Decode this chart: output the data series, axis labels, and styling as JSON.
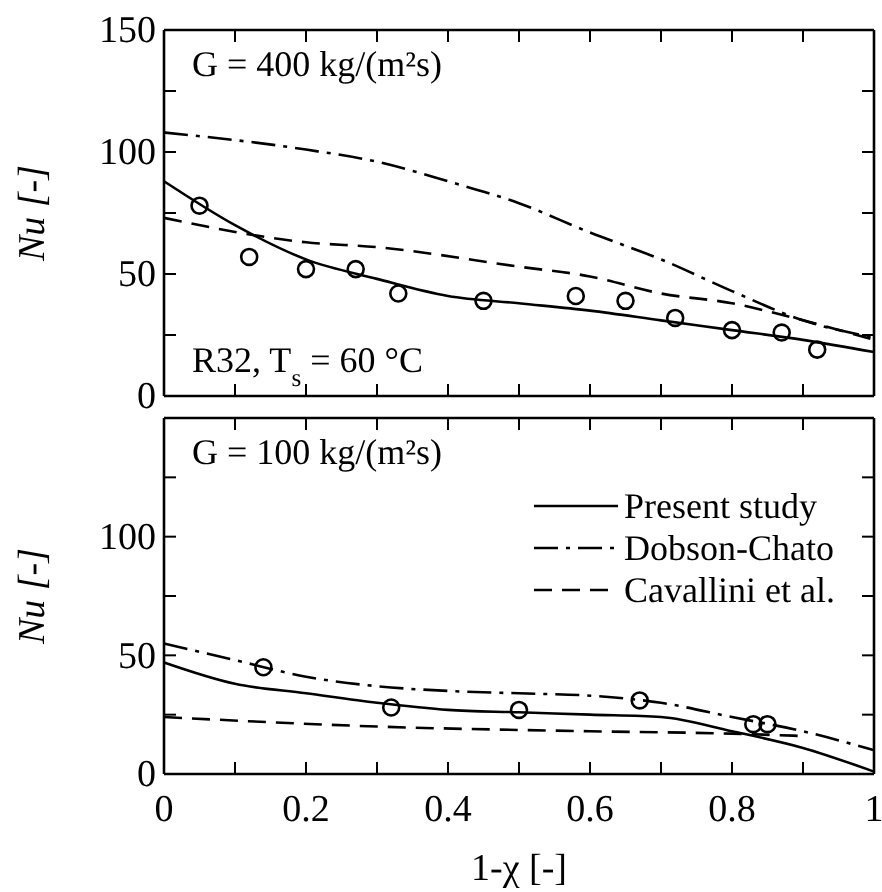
{
  "chart_data": [
    {
      "type": "line",
      "ylabel": "Nu [-]",
      "xlim": [
        0,
        1
      ],
      "ylim": [
        0,
        150
      ],
      "xticks": [
        0,
        {
          "value": 0.1,
          "label": null
        },
        0.2,
        {
          "value": 0.3,
          "label": null
        },
        0.4,
        {
          "value": 0.5,
          "label": null
        },
        0.6,
        {
          "value": 0.7,
          "label": null
        },
        0.8,
        {
          "value": 0.9,
          "label": null
        },
        1
      ],
      "yticks": [
        0,
        {
          "value": 25,
          "label": null
        },
        50,
        {
          "value": 75,
          "label": null
        },
        100,
        {
          "value": 125,
          "label": null
        },
        150
      ],
      "tick_labels": "y",
      "grid": false,
      "legend": false,
      "annotations": [
        "G = 400 kg/(m²s)",
        "R32, T$_{s}$ = 60 °C"
      ],
      "series": [
        {
          "color": "#000000",
          "line_style": "solid",
          "x": [
            0,
            0.1,
            0.2,
            0.3,
            0.4,
            0.5,
            0.6,
            0.7,
            0.8,
            0.9,
            1
          ],
          "values": [
            88,
            70,
            56,
            48,
            41,
            38,
            35,
            31,
            27,
            23,
            18
          ]
        },
        {
          "color": "#000000",
          "line_style": "dashdot",
          "x": [
            0,
            0.2,
            0.3,
            0.4,
            0.5,
            0.6,
            0.7,
            0.8,
            0.9,
            1
          ],
          "values": [
            108,
            101,
            96,
            88,
            79,
            67,
            56,
            43,
            31,
            24
          ]
        },
        {
          "color": "#000000",
          "line_style": "dashed",
          "x": [
            0,
            0.2,
            0.3,
            0.5,
            0.6,
            0.7,
            0.8,
            0.9,
            1
          ],
          "values": [
            73,
            63,
            61,
            53,
            49,
            42,
            38,
            31,
            23
          ]
        },
        {
          "type": "scatter",
          "color": "#000000",
          "marker": "circle",
          "x": [
            0.05,
            0.12,
            0.2,
            0.27,
            0.33,
            0.45,
            0.58,
            0.65,
            0.72,
            0.8,
            0.87,
            0.92
          ],
          "values": [
            78,
            57,
            52,
            52,
            42,
            39,
            41,
            39,
            32,
            27,
            26,
            19
          ]
        }
      ]
    },
    {
      "type": "line",
      "xlabel": "1-χ [-]",
      "ylabel": "Nu [-]",
      "xlim": [
        0,
        1
      ],
      "ylim": [
        0,
        150
      ],
      "xticks": [
        0,
        {
          "value": 0.1,
          "label": null
        },
        0.2,
        {
          "value": 0.3,
          "label": null
        },
        0.4,
        {
          "value": 0.5,
          "label": null
        },
        0.6,
        {
          "value": 0.7,
          "label": null
        },
        0.8,
        {
          "value": 0.9,
          "label": null
        },
        1
      ],
      "yticks": [
        0,
        {
          "value": 25,
          "label": null
        },
        50,
        {
          "value": 75,
          "label": null
        },
        100,
        {
          "value": 125,
          "label": null
        },
        {
          "value": 150,
          "label": null
        }
      ],
      "grid": false,
      "legend": "top right",
      "annotations": [
        "G = 100 kg/(m²s)"
      ],
      "series": [
        {
          "name": "Present study",
          "color": "#000000",
          "line_style": "solid",
          "x": [
            0,
            0.1,
            0.2,
            0.3,
            0.4,
            0.5,
            0.6,
            0.7,
            0.8,
            0.9,
            1
          ],
          "values": [
            47,
            38,
            34,
            30,
            27,
            26,
            25,
            24,
            18,
            11,
            1
          ]
        },
        {
          "name": "Dobson-Chato",
          "color": "#000000",
          "line_style": "dashdot",
          "x": [
            0,
            0.1,
            0.2,
            0.3,
            0.4,
            0.5,
            0.6,
            0.7,
            0.8,
            0.9,
            1
          ],
          "values": [
            55,
            48,
            41,
            37,
            35,
            34,
            33,
            30,
            24,
            18,
            10
          ]
        },
        {
          "name": "Cavallini et al.",
          "color": "#000000",
          "line_style": "dashed",
          "x": [
            0,
            0.3,
            0.6,
            0.8,
            0.9
          ],
          "values": [
            24,
            20,
            18,
            17,
            16
          ]
        },
        {
          "type": "scatter",
          "color": "#000000",
          "marker": "circle",
          "x": [
            0.14,
            0.32,
            0.5,
            0.67,
            0.83,
            0.85
          ],
          "values": [
            45,
            28,
            27,
            31,
            21,
            21
          ]
        }
      ]
    }
  ]
}
